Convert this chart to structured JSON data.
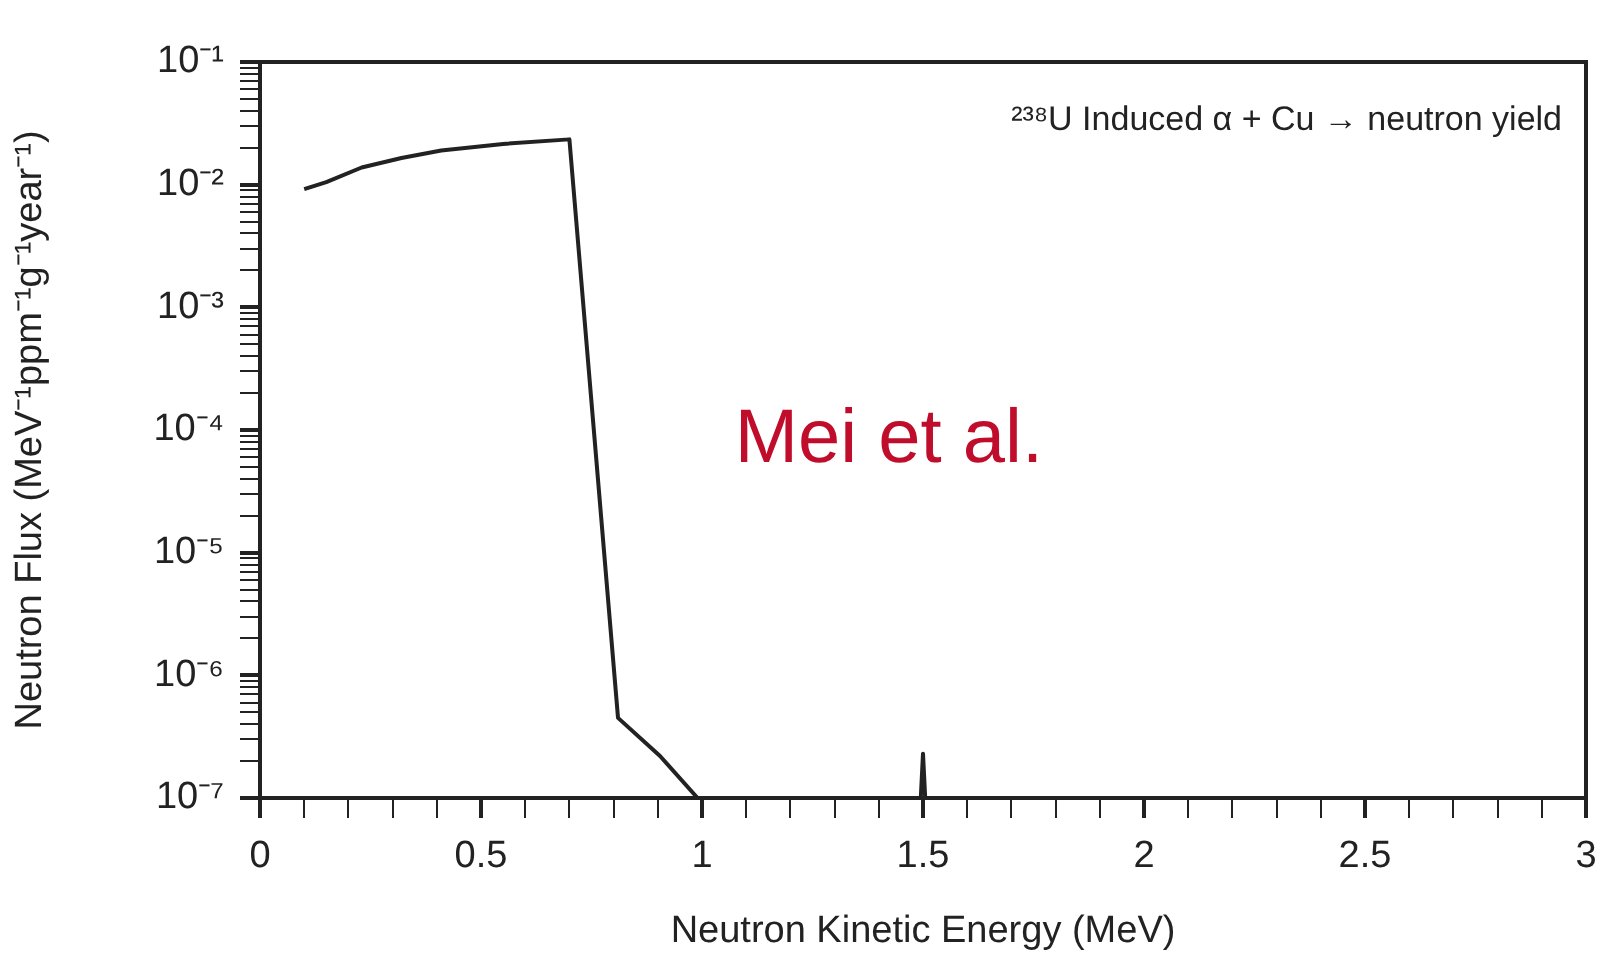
{
  "chart_data": {
    "type": "line",
    "xlabel": "Neutron Kinetic Energy (MeV)",
    "ylabel": "Neutron Flux (MeV⁻¹ppm⁻¹g⁻¹year⁻¹)",
    "annotations": [
      "²³⁸U Induced α + Cu → neutron yield",
      "Mei et al."
    ],
    "x": [
      0.1,
      0.15,
      0.23,
      0.32,
      0.41,
      0.55,
      0.7,
      0.81,
      0.905,
      0.99,
      1.2,
      1.495,
      1.5,
      1.505
    ],
    "series": [
      {
        "color": "#222222",
        "values": [
          0.0092,
          0.0105,
          0.0138,
          0.0165,
          0.019,
          0.0215,
          0.0234,
          4.5e-07,
          2.2e-07,
          1e-07,
          null,
          1e-07,
          2.3e-07,
          1e-07
        ]
      }
    ],
    "log": "y",
    "grid": false,
    "legend": false,
    "marker": "none",
    "line_style": "solid",
    "xlim": [
      0,
      3
    ],
    "xticks": [
      0,
      {
        "value": 0.1,
        "label": null
      },
      {
        "value": 0.2,
        "label": null
      },
      {
        "value": 0.3,
        "label": null
      },
      {
        "value": 0.4,
        "label": null
      },
      0.5,
      {
        "value": 0.6,
        "label": null
      },
      {
        "value": 0.7,
        "label": null
      },
      {
        "value": 0.8,
        "label": null
      },
      {
        "value": 0.9,
        "label": null
      },
      1,
      {
        "value": 1.1,
        "label": null
      },
      {
        "value": 1.2,
        "label": null
      },
      {
        "value": 1.3,
        "label": null
      },
      {
        "value": 1.4,
        "label": null
      },
      1.5,
      {
        "value": 1.6,
        "label": null
      },
      {
        "value": 1.7,
        "label": null
      },
      {
        "value": 1.8,
        "label": null
      },
      {
        "value": 1.9,
        "label": null
      },
      2,
      {
        "value": 2.1,
        "label": null
      },
      {
        "value": 2.2,
        "label": null
      },
      {
        "value": 2.3,
        "label": null
      },
      {
        "value": 2.4,
        "label": null
      },
      2.5,
      {
        "value": 2.6,
        "label": null
      },
      {
        "value": 2.7,
        "label": null
      },
      {
        "value": 2.8,
        "label": null
      },
      {
        "value": 2.9,
        "label": null
      },
      3
    ],
    "ylim": [
      1e-07,
      0.1
    ],
    "yticks": [
      {
        "value": 1e-07,
        "label": "10⁻⁷"
      },
      {
        "value": 2e-07,
        "label": null
      },
      {
        "value": 3e-07,
        "label": null
      },
      {
        "value": 4e-07,
        "label": null
      },
      {
        "value": 5e-07,
        "label": null
      },
      {
        "value": 6e-07,
        "label": null
      },
      {
        "value": 7e-07,
        "label": null
      },
      {
        "value": 8e-07,
        "label": null
      },
      {
        "value": 9e-07,
        "label": null
      },
      {
        "value": 1e-06,
        "label": "10⁻⁶"
      },
      {
        "value": 2e-06,
        "label": null
      },
      {
        "value": 3e-06,
        "label": null
      },
      {
        "value": 4e-06,
        "label": null
      },
      {
        "value": 5e-06,
        "label": null
      },
      {
        "value": 6e-06,
        "label": null
      },
      {
        "value": 7e-06,
        "label": null
      },
      {
        "value": 8e-06,
        "label": null
      },
      {
        "value": 9e-06,
        "label": null
      },
      {
        "value": 1e-05,
        "label": "10⁻⁵"
      },
      {
        "value": 2e-05,
        "label": null
      },
      {
        "value": 3e-05,
        "label": null
      },
      {
        "value": 4e-05,
        "label": null
      },
      {
        "value": 5e-05,
        "label": null
      },
      {
        "value": 6e-05,
        "label": null
      },
      {
        "value": 7e-05,
        "label": null
      },
      {
        "value": 8e-05,
        "label": null
      },
      {
        "value": 9e-05,
        "label": null
      },
      {
        "value": 0.0001,
        "label": "10⁻⁴"
      },
      {
        "value": 0.0002,
        "label": null
      },
      {
        "value": 0.0003,
        "label": null
      },
      {
        "value": 0.0004,
        "label": null
      },
      {
        "value": 0.0005,
        "label": null
      },
      {
        "value": 0.0006,
        "label": null
      },
      {
        "value": 0.0007,
        "label": null
      },
      {
        "value": 0.0008,
        "label": null
      },
      {
        "value": 0.0009,
        "label": null
      },
      {
        "value": 0.001,
        "label": "10⁻³"
      },
      {
        "value": 0.002,
        "label": null
      },
      {
        "value": 0.003,
        "label": null
      },
      {
        "value": 0.004,
        "label": null
      },
      {
        "value": 0.005,
        "label": null
      },
      {
        "value": 0.006,
        "label": null
      },
      {
        "value": 0.007,
        "label": null
      },
      {
        "value": 0.008,
        "label": null
      },
      {
        "value": 0.009,
        "label": null
      },
      {
        "value": 0.01,
        "label": "10⁻²"
      },
      {
        "value": 0.02,
        "label": null
      },
      {
        "value": 0.03,
        "label": null
      },
      {
        "value": 0.04,
        "label": null
      },
      {
        "value": 0.05,
        "label": null
      },
      {
        "value": 0.06,
        "label": null
      },
      {
        "value": 0.07,
        "label": null
      },
      {
        "value": 0.08,
        "label": null
      },
      {
        "value": 0.09,
        "label": null
      },
      {
        "value": 0.1,
        "label": "10⁻¹"
      }
    ]
  }
}
